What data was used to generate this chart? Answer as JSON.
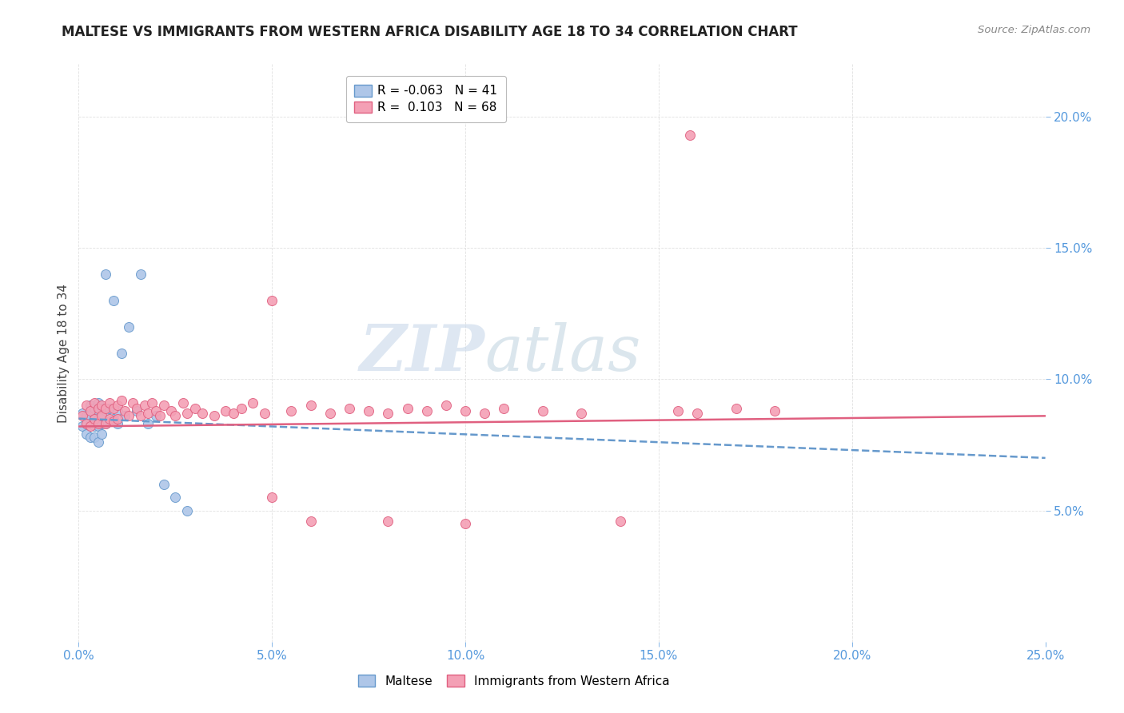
{
  "title": "MALTESE VS IMMIGRANTS FROM WESTERN AFRICA DISABILITY AGE 18 TO 34 CORRELATION CHART",
  "source": "Source: ZipAtlas.com",
  "ylabel": "Disability Age 18 to 34",
  "xlim": [
    0.0,
    0.25
  ],
  "ylim": [
    0.0,
    0.22
  ],
  "xticks": [
    0.0,
    0.05,
    0.1,
    0.15,
    0.2,
    0.25
  ],
  "yticks": [
    0.05,
    0.1,
    0.15,
    0.2
  ],
  "maltese_color": "#aec6e8",
  "maltese_edge": "#6699cc",
  "immigrant_color": "#f4a0b5",
  "immigrant_edge": "#e06080",
  "trend_maltese_color": "#6699cc",
  "trend_immigrant_color": "#e06080",
  "watermark_color": "#c8d8ea",
  "tick_color": "#5599dd",
  "grid_color": "#dddddd",
  "legend_R_maltese": "-0.063",
  "legend_N_maltese": "41",
  "legend_R_immigrant": "0.103",
  "legend_N_immigrant": "68",
  "maltese_x": [
    0.001,
    0.001,
    0.002,
    0.002,
    0.002,
    0.003,
    0.003,
    0.003,
    0.003,
    0.004,
    0.004,
    0.004,
    0.004,
    0.005,
    0.005,
    0.005,
    0.005,
    0.005,
    0.006,
    0.006,
    0.006,
    0.006,
    0.007,
    0.007,
    0.007,
    0.008,
    0.008,
    0.009,
    0.009,
    0.01,
    0.01,
    0.011,
    0.012,
    0.013,
    0.015,
    0.016,
    0.018,
    0.02,
    0.022,
    0.025,
    0.028
  ],
  "maltese_y": [
    0.087,
    0.082,
    0.086,
    0.083,
    0.079,
    0.09,
    0.086,
    0.083,
    0.078,
    0.089,
    0.085,
    0.082,
    0.078,
    0.091,
    0.088,
    0.085,
    0.082,
    0.076,
    0.089,
    0.086,
    0.083,
    0.079,
    0.14,
    0.088,
    0.083,
    0.089,
    0.084,
    0.13,
    0.085,
    0.088,
    0.083,
    0.11,
    0.086,
    0.12,
    0.088,
    0.14,
    0.083,
    0.086,
    0.06,
    0.055,
    0.05
  ],
  "immigrant_x": [
    0.001,
    0.002,
    0.002,
    0.003,
    0.003,
    0.004,
    0.004,
    0.005,
    0.005,
    0.006,
    0.006,
    0.007,
    0.007,
    0.008,
    0.008,
    0.009,
    0.009,
    0.01,
    0.01,
    0.011,
    0.012,
    0.013,
    0.014,
    0.015,
    0.016,
    0.017,
    0.018,
    0.019,
    0.02,
    0.021,
    0.022,
    0.024,
    0.025,
    0.027,
    0.028,
    0.03,
    0.032,
    0.035,
    0.038,
    0.04,
    0.042,
    0.045,
    0.048,
    0.05,
    0.055,
    0.06,
    0.065,
    0.07,
    0.075,
    0.08,
    0.085,
    0.09,
    0.095,
    0.1,
    0.105,
    0.11,
    0.12,
    0.13,
    0.14,
    0.155,
    0.16,
    0.17,
    0.18,
    0.05,
    0.06,
    0.08,
    0.1,
    0.158
  ],
  "immigrant_y": [
    0.086,
    0.09,
    0.083,
    0.088,
    0.082,
    0.091,
    0.085,
    0.089,
    0.083,
    0.09,
    0.086,
    0.089,
    0.083,
    0.091,
    0.085,
    0.089,
    0.084,
    0.09,
    0.085,
    0.092,
    0.088,
    0.086,
    0.091,
    0.089,
    0.086,
    0.09,
    0.087,
    0.091,
    0.088,
    0.086,
    0.09,
    0.088,
    0.086,
    0.091,
    0.087,
    0.089,
    0.087,
    0.086,
    0.088,
    0.087,
    0.089,
    0.091,
    0.087,
    0.13,
    0.088,
    0.09,
    0.087,
    0.089,
    0.088,
    0.087,
    0.089,
    0.088,
    0.09,
    0.088,
    0.087,
    0.089,
    0.088,
    0.087,
    0.046,
    0.088,
    0.087,
    0.089,
    0.088,
    0.055,
    0.046,
    0.046,
    0.045,
    0.193
  ]
}
